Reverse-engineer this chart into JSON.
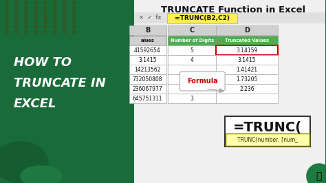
{
  "title": "TRUNCATE Function in Excel",
  "left_text_lines": [
    "HOW TO",
    "TRUNCATE IN",
    "EXCEL"
  ],
  "bg_color_left": "#1a6b3a",
  "bg_color_right": "#e8e8e8",
  "formula_bar_text": "=TRUNC(B2,C2)",
  "col_headers": [
    "B",
    "C",
    "D"
  ],
  "header_row": [
    "alues",
    "Number of Digits",
    "Truncated Values"
  ],
  "col_c_color": "#4caf50",
  "col_d_color": "#4caf50",
  "data_rows": [
    [
      "41592654",
      "5",
      "3.14159"
    ],
    [
      "3.1415",
      "4",
      "3.1415"
    ],
    [
      "14213562",
      "",
      "1.41421"
    ],
    [
      "732050808",
      "",
      "1.73205"
    ],
    [
      "236067977",
      "4",
      "2.236"
    ],
    [
      "645751311",
      "3",
      ""
    ]
  ],
  "formula_label": "Formula",
  "trunc_formula": "=TRUNC(",
  "trunc_syntax": "TRUNC(number, [num_",
  "highlight_cell_color": "#ff0000",
  "formula_bubble_color": "#ffffff",
  "trunc_box_color": "#ffffff",
  "syntax_box_color": "#ffffaa",
  "dots_color": "#2d5a27",
  "title_color": "#1a1a1a",
  "title_font_size": 14
}
